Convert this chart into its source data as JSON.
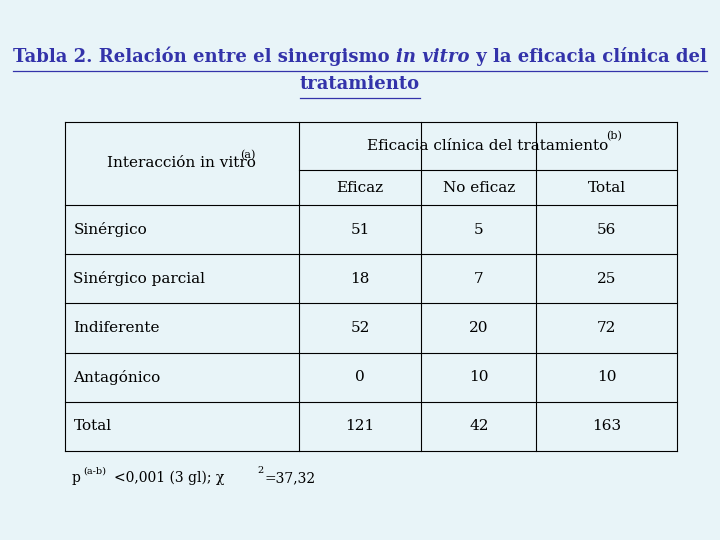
{
  "title_part1": "Tabla 2. Relación entre el sinergismo ",
  "title_italic": "in vitro",
  "title_part2": " y la eficacia clínica del",
  "title_line2": "tratamiento",
  "bg_color": "#e8f4f8",
  "title_color": "#3333aa",
  "table_text_color": "#000000",
  "header_row1": "Eficacia clínica del tratamiento",
  "header_row1_super": "(b)",
  "header_col": "Interacción in vitro",
  "header_col_super": "(a)",
  "subheaders": [
    "Eficaz",
    "No eficaz",
    "Total"
  ],
  "row_labels": [
    "Sinérgico",
    "Sinérgico parcial",
    "Indiferente",
    "Antagónico",
    "Total"
  ],
  "data": [
    [
      "51",
      "5",
      "56"
    ],
    [
      "18",
      "7",
      "25"
    ],
    [
      "52",
      "20",
      "72"
    ],
    [
      "0",
      "10",
      "10"
    ],
    [
      "121",
      "42",
      "163"
    ]
  ],
  "font_size_title": 13,
  "font_size_table": 11,
  "font_size_footnote": 10
}
